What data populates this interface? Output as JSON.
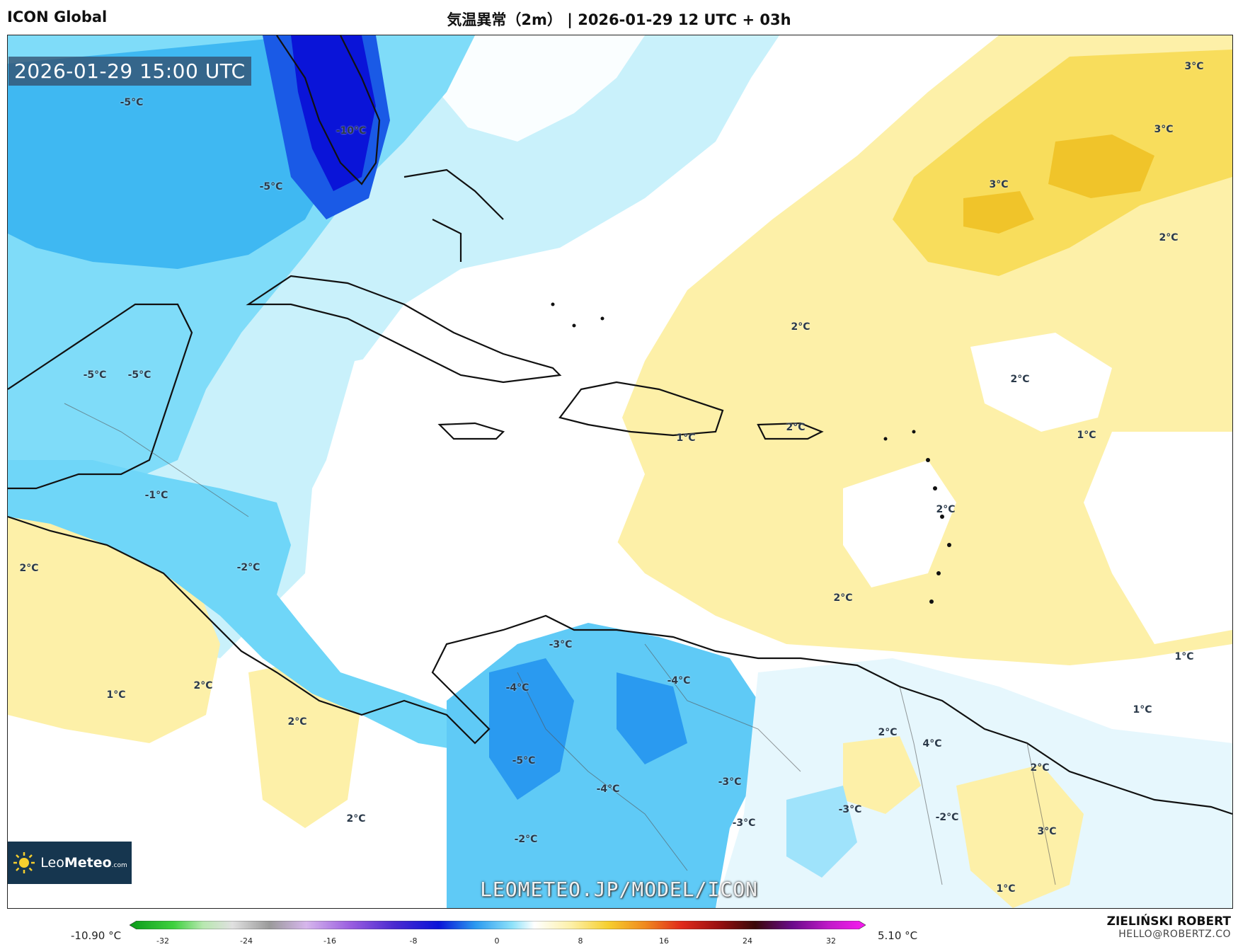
{
  "header": {
    "model": "ICON Global",
    "title": "気温異常（2m） | 2026-01-29 12 UTC + 03h"
  },
  "map": {
    "valid_time": "2026-01-29 15:00 UTC",
    "watermark": "LEOMETEO.JP/MODEL/ICON",
    "logo": {
      "leo": "Leo",
      "meteo": "Meteo",
      "suffix": ".com"
    },
    "contour_labels": {
      "l01": "-5°C",
      "l02": "-10°C",
      "l03": "-5°C",
      "l04": "-5°C",
      "l05": "-5°C",
      "l06": "3°C",
      "l07": "3°C",
      "l08": "3°C",
      "l09": "2°C",
      "l10": "2°C",
      "l11": "2°C",
      "l12": "1°C",
      "l13": "2°C",
      "l14": "1°C",
      "l15": "2°C",
      "l16": "-1°C",
      "l17": "2°C",
      "l18": "-2°C",
      "l19": "2°C",
      "l20": "1°C",
      "l21": "2°C",
      "l22": "2°C",
      "l23": "1°C",
      "l24": "-3°C",
      "l25": "-4°C",
      "l26": "-4°C",
      "l27": "2°C",
      "l28": "4°C",
      "l29": "1°C",
      "l30": "2°C",
      "l31": "-5°C",
      "l32": "-4°C",
      "l33": "-3°C",
      "l34": "-3°C",
      "l35": "-3°C",
      "l36": "-2°C",
      "l37": "3°C",
      "l38": "2°C",
      "l39": "-2°C",
      "l40": "1°C"
    }
  },
  "colorbar": {
    "min_label": "-10.90 °C",
    "max_label": "5.10 °C",
    "ticks": [
      "-32",
      "-24",
      "-16",
      "-8",
      "0",
      "8",
      "16",
      "24",
      "32"
    ]
  },
  "author": {
    "name": "ZIELIŃSKI ROBERT",
    "email": "HELLO@ROBERTZ.CO"
  },
  "colors": {
    "deep_blue": "#0a14d8",
    "blue": "#2a9af0",
    "light_blue": "#6fd6f8",
    "pale_blue": "#c9f1fb",
    "yellow": "#fdf0a8",
    "gold": "#f6cf2e",
    "land_border": "#111111"
  }
}
